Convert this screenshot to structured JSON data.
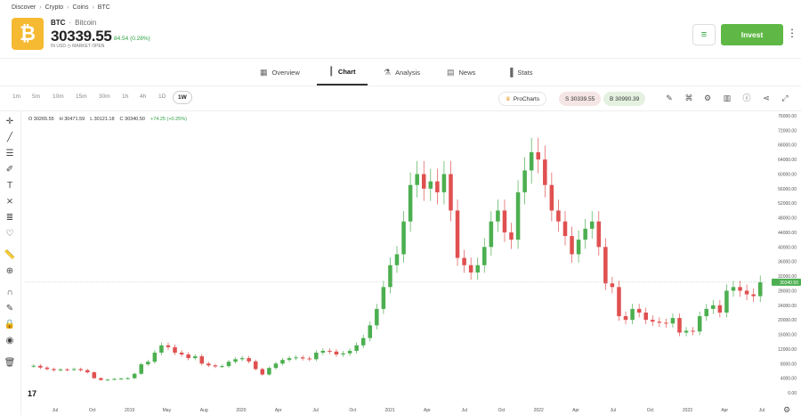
{
  "breadcrumb": [
    "Discover",
    "Crypto",
    "Coins",
    "BTC"
  ],
  "asset": {
    "symbol": "BTC",
    "name": "Bitcoin",
    "price": "30339.55",
    "change": "84.54 (0.28%)",
    "status": "IN USD  ◷  MARKET OPEN",
    "logo_glyph": "₿",
    "logo_color": "#f5b932"
  },
  "actions": {
    "invest_label": "Invest",
    "invest_color": "#5fb845",
    "more_glyph": "⋮",
    "watch_glyph": "≡"
  },
  "tabs": [
    {
      "label": "Overview",
      "icon": "grid-icon",
      "glyph": "▦"
    },
    {
      "label": "Chart",
      "icon": "candle-icon",
      "glyph": "┃"
    },
    {
      "label": "Analysis",
      "icon": "flask-icon",
      "glyph": "⚗"
    },
    {
      "label": "News",
      "icon": "news-icon",
      "glyph": "▤"
    },
    {
      "label": "Stats",
      "icon": "bars-icon",
      "glyph": "▐"
    }
  ],
  "timeframes": [
    "1m",
    "5m",
    "10m",
    "15m",
    "30m",
    "1h",
    "4h",
    "1D",
    "1W"
  ],
  "active_timeframe": "1W",
  "toolbar": {
    "prochart_label": "ProCharts",
    "sell_label": "S 30339.55",
    "buy_label": "B 30990.39"
  },
  "ohlc": {
    "open": "O 30265.55",
    "high": "H 30471.59",
    "low": "L 30121.18",
    "close": "C 30340.50",
    "change": "+74.25 (+0.25%)"
  },
  "tv_logo": "17",
  "chart_data": {
    "type": "candlestick",
    "x_labels": [
      "Jul",
      "Oct",
      "2019",
      "May",
      "Aug",
      "2020",
      "Apr",
      "Jul",
      "Oct",
      "2021",
      "Apr",
      "Jul",
      "Oct",
      "2022",
      "Apr",
      "Jul",
      "Oct",
      "2023",
      "Apr",
      "Jul"
    ],
    "y_ticks": [
      "76000.00",
      "72000.00",
      "68000.00",
      "64000.00",
      "60000.00",
      "56000.00",
      "52000.00",
      "48000.00",
      "44000.00",
      "40000.00",
      "36000.00",
      "32000.00",
      "28000.00",
      "24000.00",
      "20000.00",
      "16000.00",
      "12000.00",
      "8000.00",
      "4000.00",
      "0.00"
    ],
    "ylim": [
      0,
      76000
    ],
    "last_price_label": "30340.50",
    "up_color": "#4caf50",
    "down_color": "#e05050",
    "closes": [
      7400,
      6900,
      6500,
      6200,
      6400,
      6300,
      6500,
      6200,
      5600,
      4000,
      3500,
      3600,
      3800,
      3900,
      4000,
      5200,
      7800,
      8500,
      11000,
      13000,
      12500,
      11000,
      10500,
      9500,
      10000,
      8000,
      7500,
      7200,
      7300,
      8500,
      9200,
      9500,
      8600,
      6500,
      5000,
      6800,
      8000,
      9000,
      9500,
      9700,
      9400,
      9200,
      11000,
      11500,
      11300,
      10500,
      10800,
      11500,
      13000,
      15000,
      18500,
      23000,
      29000,
      35000,
      38000,
      47000,
      57000,
      60000,
      56000,
      58000,
      55000,
      60000,
      50000,
      37000,
      35000,
      33000,
      35000,
      40000,
      47000,
      50000,
      44000,
      42000,
      55000,
      61000,
      66000,
      64000,
      57000,
      50000,
      47000,
      43000,
      38000,
      42000,
      45000,
      47000,
      40000,
      30000,
      29000,
      21000,
      20000,
      23000,
      22000,
      20000,
      19500,
      19200,
      19000,
      20500,
      16500,
      17000,
      16800,
      21000,
      23000,
      24000,
      22000,
      28000,
      29000,
      28000,
      27000,
      26500,
      30340
    ]
  }
}
